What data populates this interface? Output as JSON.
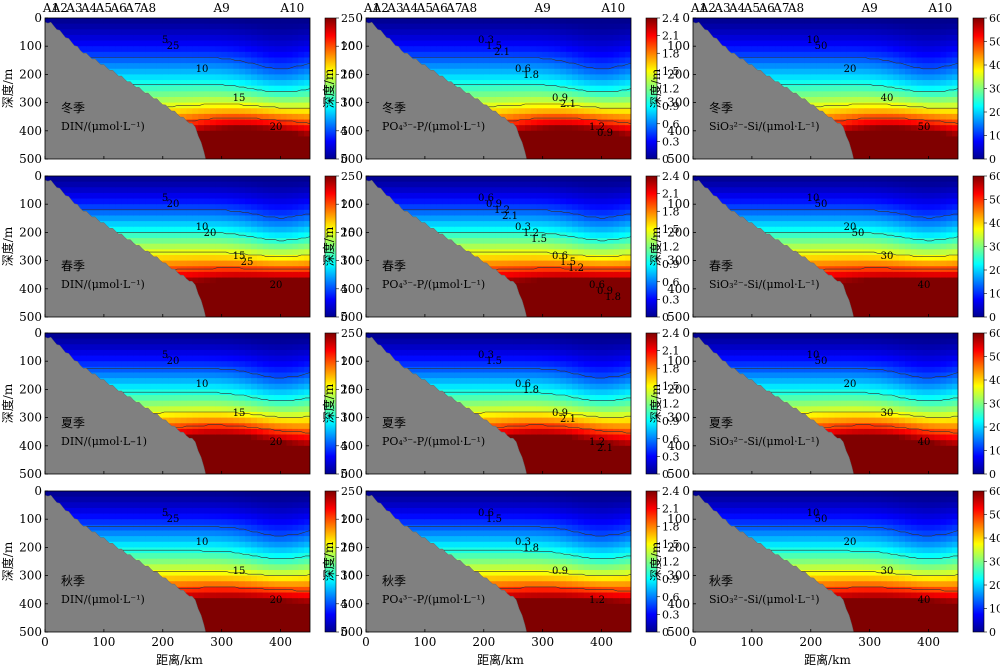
{
  "station_labels": [
    "A1",
    "A2",
    "A3",
    "A4",
    "A5",
    "A6",
    "A7",
    "A8",
    "A9",
    "A10"
  ],
  "y_axis_label": "深度/m",
  "x_axis_label": "距离/km",
  "x_ticks": [
    0,
    100,
    200,
    300,
    400
  ],
  "y_ticks": [
    0,
    100,
    200,
    300,
    400,
    500
  ],
  "seasons": [
    "冬季",
    "春季",
    "夏季",
    "秋季"
  ],
  "column_units": [
    "DIN/(μmol·L⁻¹)",
    "PO₄³⁻-P/(μmol·L⁻¹)",
    "SiO₃²⁻-Si/(μmol·L⁻¹)"
  ],
  "summer_din_unit": "DIN/(μmol·L–1)",
  "colorbars": [
    {
      "max": 25,
      "ticks": [
        0,
        5,
        10,
        15,
        20,
        25
      ]
    },
    {
      "max": 2.4,
      "ticks": [
        0,
        0.3,
        0.6,
        0.9,
        1.2,
        1.5,
        1.8,
        2.1,
        2.4
      ]
    },
    {
      "max": 60,
      "ticks": [
        0,
        10,
        20,
        30,
        40,
        50,
        60
      ]
    }
  ],
  "chart_data": [
    {
      "type": "heatmap",
      "variable": "DIN",
      "season": "冬季",
      "contour_labels": [
        "5",
        "10",
        "15",
        "20",
        "25"
      ],
      "xlim": [
        0,
        450
      ],
      "ylim": [
        500,
        0
      ],
      "zlim": [
        0,
        25
      ]
    },
    {
      "type": "heatmap",
      "variable": "PO4-P",
      "season": "冬季",
      "contour_labels": [
        "0.3",
        "0.6",
        "0.9",
        "1.2",
        "1.5",
        "1.8",
        "2.1",
        "0.9",
        "2.1"
      ],
      "xlim": [
        0,
        450
      ],
      "ylim": [
        500,
        0
      ],
      "zlim": [
        0,
        2.4
      ]
    },
    {
      "type": "heatmap",
      "variable": "SiO3-Si",
      "season": "冬季",
      "contour_labels": [
        "10",
        "20",
        "40",
        "50",
        "50"
      ],
      "xlim": [
        0,
        450
      ],
      "ylim": [
        500,
        0
      ],
      "zlim": [
        0,
        60
      ]
    },
    {
      "type": "heatmap",
      "variable": "DIN",
      "season": "春季",
      "contour_labels": [
        "5",
        "10",
        "15",
        "20",
        "20",
        "20",
        "25"
      ],
      "xlim": [
        0,
        450
      ],
      "ylim": [
        500,
        0
      ],
      "zlim": [
        0,
        25
      ]
    },
    {
      "type": "heatmap",
      "variable": "PO4-P",
      "season": "春季",
      "contour_labels": [
        "0.6",
        "0.3",
        "0.6",
        "0.6",
        "0.9",
        "1.2",
        "1.5",
        "0.9",
        "1.2",
        "1.5",
        "1.2",
        "1.8",
        "2.1"
      ],
      "xlim": [
        0,
        450
      ],
      "ylim": [
        500,
        0
      ],
      "zlim": [
        0,
        2.4
      ]
    },
    {
      "type": "heatmap",
      "variable": "SiO3-Si",
      "season": "春季",
      "contour_labels": [
        "10",
        "20",
        "30",
        "40",
        "50",
        "50"
      ],
      "xlim": [
        0,
        450
      ],
      "ylim": [
        500,
        0
      ],
      "zlim": [
        0,
        60
      ]
    },
    {
      "type": "heatmap",
      "variable": "DIN",
      "season": "夏季",
      "contour_labels": [
        "5",
        "10",
        "15",
        "20",
        "20"
      ],
      "xlim": [
        0,
        450
      ],
      "ylim": [
        500,
        0
      ],
      "zlim": [
        0,
        25
      ]
    },
    {
      "type": "heatmap",
      "variable": "PO4-P",
      "season": "夏季",
      "contour_labels": [
        "0.3",
        "0.6",
        "0.9",
        "1.2",
        "1.5",
        "1.8",
        "2.1",
        "2.1"
      ],
      "xlim": [
        0,
        450
      ],
      "ylim": [
        500,
        0
      ],
      "zlim": [
        0,
        2.4
      ]
    },
    {
      "type": "heatmap",
      "variable": "SiO3-Si",
      "season": "夏季",
      "contour_labels": [
        "10",
        "20",
        "30",
        "40",
        "50"
      ],
      "xlim": [
        0,
        450
      ],
      "ylim": [
        500,
        0
      ],
      "zlim": [
        0,
        60
      ]
    },
    {
      "type": "heatmap",
      "variable": "DIN",
      "season": "秋季",
      "contour_labels": [
        "5",
        "10",
        "15",
        "20",
        "25"
      ],
      "xlim": [
        0,
        450
      ],
      "ylim": [
        500,
        0
      ],
      "zlim": [
        0,
        25
      ]
    },
    {
      "type": "heatmap",
      "variable": "PO4-P",
      "season": "秋季",
      "contour_labels": [
        "0.6",
        "0.3",
        "0.9",
        "1.2",
        "1.5",
        "1.8"
      ],
      "xlim": [
        0,
        450
      ],
      "ylim": [
        500,
        0
      ],
      "zlim": [
        0,
        2.4
      ]
    },
    {
      "type": "heatmap",
      "variable": "SiO3-Si",
      "season": "秋季",
      "contour_labels": [
        "10",
        "20",
        "30",
        "40",
        "50"
      ],
      "xlim": [
        0,
        450
      ],
      "ylim": [
        500,
        0
      ],
      "zlim": [
        0,
        60
      ]
    }
  ]
}
